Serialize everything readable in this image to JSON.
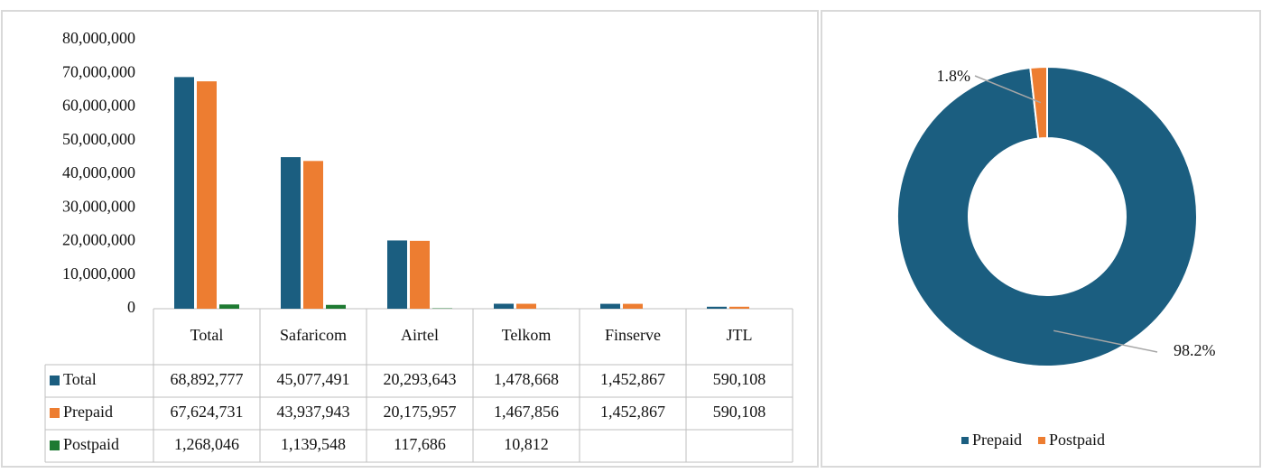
{
  "chart_data": [
    {
      "type": "bar",
      "categories": [
        "Total",
        "Safaricom",
        "Airtel",
        "Telkom",
        "Finserve",
        "JTL"
      ],
      "series": [
        {
          "name": "Total",
          "color": "#1b5e80",
          "values": [
            68892777,
            45077491,
            20293643,
            1478668,
            1452867,
            590108
          ],
          "value_labels": [
            "68,892,777",
            "45,077,491",
            "20,293,643",
            "1,478,668",
            "1,452,867",
            "590,108"
          ]
        },
        {
          "name": "Prepaid",
          "color": "#ed7d31",
          "values": [
            67624731,
            43937943,
            20175957,
            1467856,
            1452867,
            590108
          ],
          "value_labels": [
            "67,624,731",
            "43,937,943",
            "20,175,957",
            "1,467,856",
            "1,452,867",
            "590,108"
          ]
        },
        {
          "name": "Postpaid",
          "color": "#1e7a32",
          "values": [
            1268046,
            1139548,
            117686,
            10812,
            null,
            null
          ],
          "value_labels": [
            "1,268,046",
            "1,139,548",
            "117,686",
            "10,812",
            null,
            null
          ]
        }
      ],
      "ylim": [
        0,
        80000000
      ],
      "yticks": [
        0,
        {
          "value": 10000000,
          "label": "10,000,000"
        },
        {
          "value": 20000000,
          "label": "20,000,000"
        },
        {
          "value": 30000000,
          "label": "30,000,000"
        },
        {
          "value": 40000000,
          "label": "40,000,000"
        },
        {
          "value": 50000000,
          "label": "50,000,000"
        },
        {
          "value": 60000000,
          "label": "60,000,000"
        },
        {
          "value": 70000000,
          "label": "70,000,000"
        },
        {
          "value": 80000000,
          "label": "80,000,000"
        }
      ],
      "grid": false
    },
    {
      "type": "pie",
      "categories": [
        "Prepaid",
        "Postpaid"
      ],
      "values": [
        98.2,
        1.8
      ],
      "value_labels": [
        "98.2%",
        "1.8%"
      ],
      "colors": [
        "#1b5e80",
        "#ed7d31"
      ],
      "donut": true,
      "legend": "bottom"
    }
  ]
}
